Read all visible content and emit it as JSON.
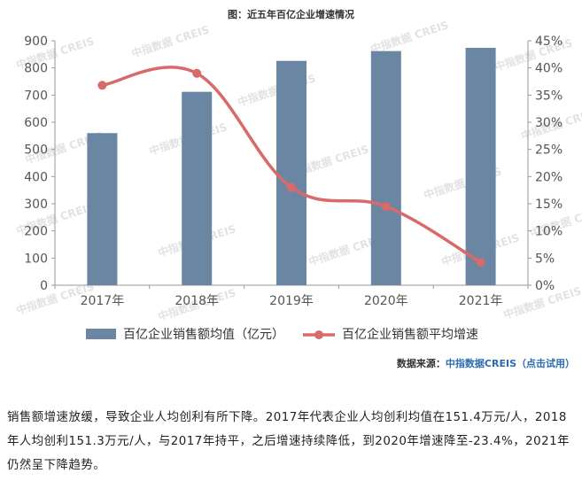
{
  "chart_data": {
    "type": "bar+line",
    "title": "图：近五年百亿企业增速情况",
    "categories": [
      "2017年",
      "2018年",
      "2019年",
      "2020年",
      "2021年"
    ],
    "series": [
      {
        "name": "百亿企业销售额均值（亿元）",
        "type": "bar",
        "axis": "left",
        "values": [
          560,
          712,
          826,
          862,
          874
        ]
      },
      {
        "name": "百亿企业销售额平均增速",
        "type": "line",
        "axis": "right",
        "values": [
          36.8,
          39.0,
          18.0,
          14.5,
          4.2
        ]
      }
    ],
    "left_axis": {
      "ylim": [
        0,
        900
      ],
      "ticks": [
        "0",
        "100",
        "200",
        "300",
        "400",
        "500",
        "600",
        "700",
        "800",
        "900"
      ]
    },
    "right_axis": {
      "ylim": [
        0,
        45
      ],
      "ticks": [
        "0%",
        "5%",
        "10%",
        "15%",
        "20%",
        "25%",
        "30%",
        "35%",
        "40%",
        "45%"
      ]
    },
    "legend_position": "bottom",
    "colors": {
      "bar": "#6b86a3",
      "line": "#d86a6a"
    },
    "watermark": "中指数据 CREIS"
  },
  "source": {
    "label": "数据来源：",
    "link": "中指数据CREIS（点击试用）"
  },
  "description": "销售额增速放缓，导致企业人均创利有所下降。2017年代表企业人均创利均值在151.4万元/人，2018年人均创利151.3万元/人，与2017年持平，之后增速持续降低，到2020年增速降至-23.4%，2021年仍然呈下降趋势。"
}
